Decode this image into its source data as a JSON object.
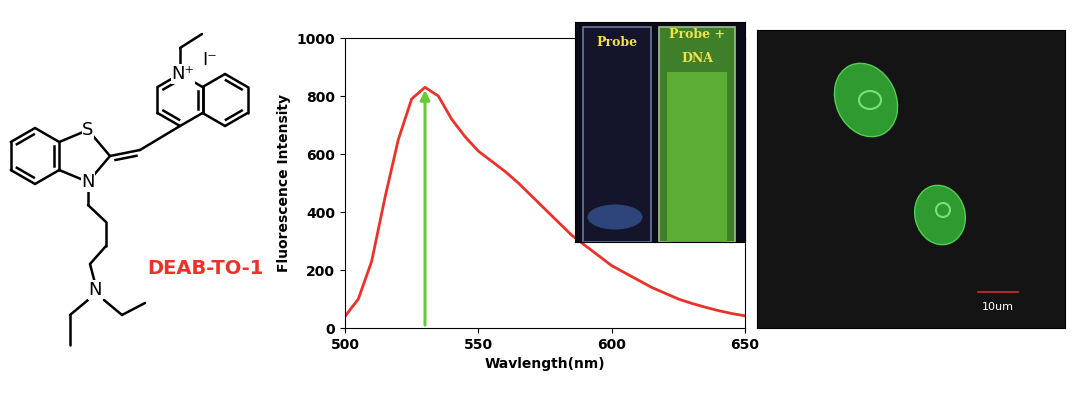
{
  "chart_data": {
    "type": "line",
    "x_label": "Wavlength(nm)",
    "y_label": "Fluorescence Intensity",
    "x": [
      500,
      505,
      510,
      515,
      520,
      525,
      530,
      535,
      540,
      545,
      550,
      555,
      560,
      565,
      570,
      575,
      580,
      585,
      590,
      595,
      600,
      605,
      610,
      615,
      620,
      625,
      630,
      635,
      640,
      645,
      650
    ],
    "values": [
      40,
      100,
      230,
      450,
      650,
      790,
      830,
      800,
      720,
      660,
      610,
      575,
      540,
      500,
      455,
      410,
      365,
      320,
      285,
      250,
      215,
      190,
      165,
      140,
      120,
      100,
      85,
      72,
      60,
      50,
      42
    ],
    "color": "#e8322a",
    "xlim": [
      500,
      650
    ],
    "xticks": [
      500,
      550,
      600,
      650
    ],
    "ylim": [
      0,
      1000
    ],
    "yticks": [
      0,
      200,
      400,
      600,
      800,
      1000
    ],
    "peak": {
      "x": 530,
      "y": 830,
      "color": "#66cc33"
    },
    "structure": {
      "name": "DEAB-TO-1",
      "name_color": "#e8322a",
      "atoms": [
        "S",
        "N",
        "N⁺",
        "I⁻",
        "N"
      ]
    },
    "inset_photo": {
      "left_label": "Probe",
      "right_label_lines": [
        "Probe +",
        "DNA"
      ],
      "label_color": "#f2e14a"
    },
    "cell_image": {
      "scale_bar": "10um"
    }
  }
}
